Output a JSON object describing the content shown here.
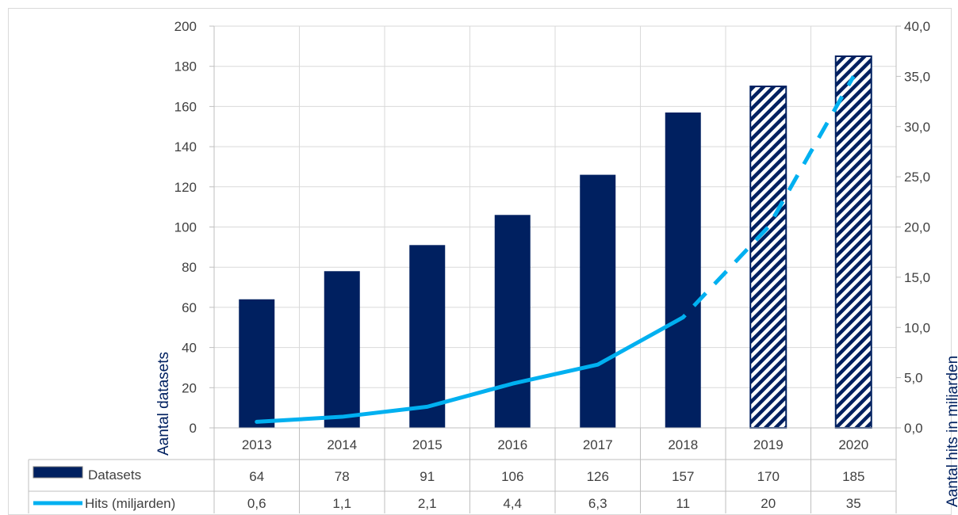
{
  "chart_data": {
    "type": "bar",
    "categories": [
      "2013",
      "2014",
      "2015",
      "2016",
      "2017",
      "2018",
      "2019",
      "2020"
    ],
    "series": [
      {
        "name": "Datasets",
        "type": "bar",
        "axis": "left",
        "values": [
          64,
          78,
          91,
          106,
          126,
          157,
          170,
          185
        ],
        "value_labels": [
          "64",
          "78",
          "91",
          "106",
          "126",
          "157",
          "170",
          "185"
        ],
        "forecast_from_index": 6,
        "color": "#002060"
      },
      {
        "name": "Hits (miljarden)",
        "type": "line",
        "axis": "right",
        "values": [
          0.6,
          1.1,
          2.1,
          4.4,
          6.3,
          11,
          20,
          35
        ],
        "value_labels": [
          "0,6",
          "1,1",
          "2,1",
          "4,4",
          "6,3",
          "11",
          "20",
          "35"
        ],
        "forecast_from_index": 5,
        "color": "#00b0f0"
      }
    ],
    "y_left": {
      "label": "Aantal datasets",
      "ylim": [
        0,
        200
      ],
      "ticks": [
        "0",
        "20",
        "40",
        "60",
        "80",
        "100",
        "120",
        "140",
        "160",
        "180",
        "200"
      ]
    },
    "y_right": {
      "label": "Aantal hits in miljarden",
      "ylim": [
        0,
        40
      ],
      "ticks": [
        "0,0",
        "5,0",
        "10,0",
        "15,0",
        "20,0",
        "25,0",
        "30,0",
        "35,0",
        "40,0"
      ]
    },
    "grid": true,
    "data_table": true
  }
}
